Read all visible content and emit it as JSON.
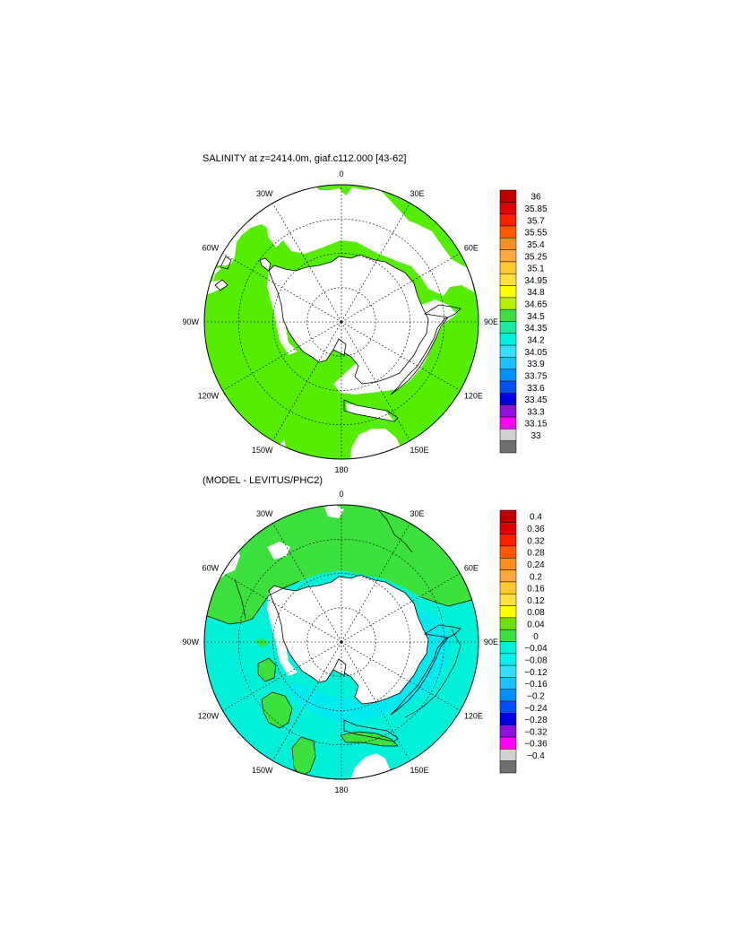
{
  "panel_top": {
    "title": "SALINITY at z=2414.0m, giaf.c112.000 [43-62]",
    "lon_labels": [
      "0",
      "30E",
      "60E",
      "90E",
      "120E",
      "150E",
      "180",
      "150W",
      "120W",
      "90W",
      "60W",
      "30W"
    ],
    "colorbar": {
      "labels": [
        "36",
        "35.85",
        "35.7",
        "35.55",
        "35.4",
        "35.25",
        "35.1",
        "34.95",
        "34.8",
        "34.65",
        "34.5",
        "34.35",
        "34.2",
        "34.05",
        "33.9",
        "33.75",
        "33.6",
        "33.45",
        "33.3",
        "33.15",
        "33"
      ],
      "colors": [
        "#c00000",
        "#e00000",
        "#ff2000",
        "#ff5a00",
        "#ff8c20",
        "#ffa840",
        "#ffc830",
        "#ffe040",
        "#ffff00",
        "#b4f000",
        "#3ce03c",
        "#20e8a0",
        "#00f0e0",
        "#30e0ff",
        "#20c0ff",
        "#0090ff",
        "#0050ff",
        "#0000e0",
        "#9010e0",
        "#ff00ff",
        "#d0d0d0",
        "#707070"
      ]
    }
  },
  "panel_bottom": {
    "title": "(MODEL - LEVITUS/PHC2)",
    "lon_labels": [
      "0",
      "30E",
      "60E",
      "90E",
      "120E",
      "150E",
      "180",
      "150W",
      "120W",
      "90W",
      "60W",
      "30W"
    ],
    "colorbar": {
      "labels": [
        "0.4",
        "0.36",
        "0.32",
        "0.28",
        "0.24",
        "0.2",
        "0.16",
        "0.12",
        "0.08",
        "0.04",
        "0",
        "−0.04",
        "−0.08",
        "−0.12",
        "−0.16",
        "−0.2",
        "−0.24",
        "−0.28",
        "−0.32",
        "−0.36",
        "−0.4"
      ],
      "colors": [
        "#c00000",
        "#e00000",
        "#ff2000",
        "#ff5a00",
        "#ff8c20",
        "#ffa840",
        "#ffc830",
        "#ffe040",
        "#ffff00",
        "#6ee000",
        "#3ce03c",
        "#00f0d8",
        "#00f0f0",
        "#30e0ff",
        "#20c0ff",
        "#0090ff",
        "#0050ff",
        "#0000e0",
        "#9010e0",
        "#ff00ff",
        "#d0d0d0",
        "#707070"
      ]
    }
  },
  "colors": {
    "land": "#ffffff",
    "ocean_top": "#55ee00",
    "ocean_bottom_main": "#00f0d8",
    "ocean_bottom_green": "#3ce03c",
    "ocean_bottom_cyan": "#00eaf0",
    "outline": "#000000"
  }
}
